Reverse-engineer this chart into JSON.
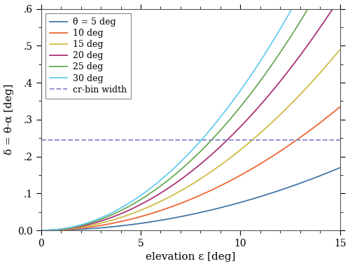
{
  "theta_values": [
    5,
    10,
    15,
    20,
    25,
    30
  ],
  "line_colors": [
    "#4477AA",
    "#EE6633",
    "#CCBB44",
    "#AA3377",
    "#66AA55",
    "#66CCEE"
  ],
  "line_labels": [
    "θ = 5 deg",
    "10 deg",
    "15 deg",
    "20 deg",
    "25 deg",
    "30 deg"
  ],
  "dashed_line_value": 0.245,
  "dashed_line_label": "cr-bin width",
  "dashed_line_color": "#8888CC",
  "epsilon_min": 0,
  "epsilon_max": 15,
  "delta_min": 0,
  "delta_max": 0.6,
  "xlabel": "elevation ε [deg]",
  "ylabel": "δ = θ-α [deg]",
  "xticks": [
    0,
    5,
    10,
    15
  ],
  "yticks": [
    0.0,
    0.1,
    0.2,
    0.3,
    0.4,
    0.5,
    0.6
  ],
  "figwidth": 5.0,
  "figheight": 3.8,
  "dpi": 100
}
